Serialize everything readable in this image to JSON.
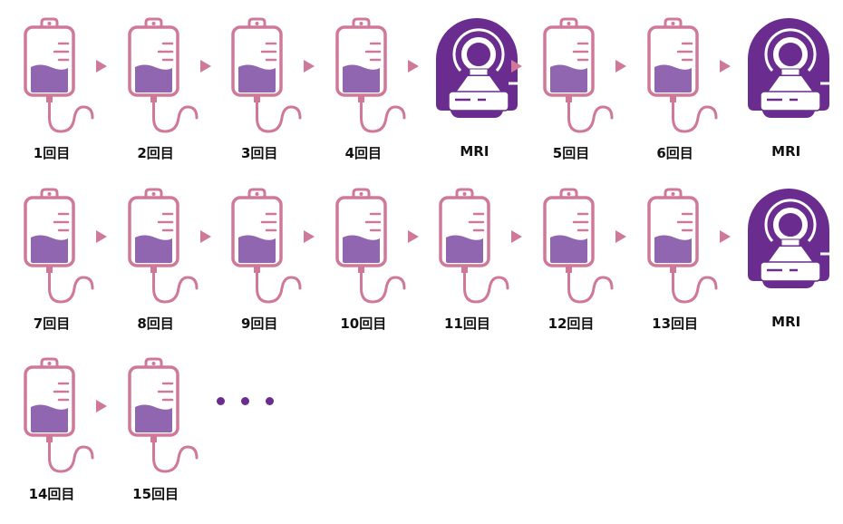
{
  "colors": {
    "bag_outline": "#d0789a",
    "liquid": "#9166b0",
    "mri": "#6a2c8e",
    "arrow": "#d0789a",
    "dots": "#6a2c8e"
  },
  "rows": [
    [
      {
        "type": "bag",
        "label": "1回目"
      },
      {
        "type": "bag",
        "label": "2回目"
      },
      {
        "type": "bag",
        "label": "3回目"
      },
      {
        "type": "bag",
        "label": "4回目"
      },
      {
        "type": "mri",
        "label": "MRI"
      },
      {
        "type": "bag",
        "label": "5回目"
      },
      {
        "type": "bag",
        "label": "6回目"
      },
      {
        "type": "mri",
        "label": "MRI"
      }
    ],
    [
      {
        "type": "bag",
        "label": "7回目"
      },
      {
        "type": "bag",
        "label": "8回目"
      },
      {
        "type": "bag",
        "label": "9回目"
      },
      {
        "type": "bag",
        "label": "10回目"
      },
      {
        "type": "bag",
        "label": "11回目"
      },
      {
        "type": "bag",
        "label": "12回目"
      },
      {
        "type": "bag",
        "label": "13回目"
      },
      {
        "type": "mri",
        "label": "MRI"
      }
    ],
    [
      {
        "type": "bag",
        "label": "14回目"
      },
      {
        "type": "bag",
        "label": "15回目"
      },
      {
        "type": "ellipsis",
        "label": ""
      }
    ]
  ]
}
